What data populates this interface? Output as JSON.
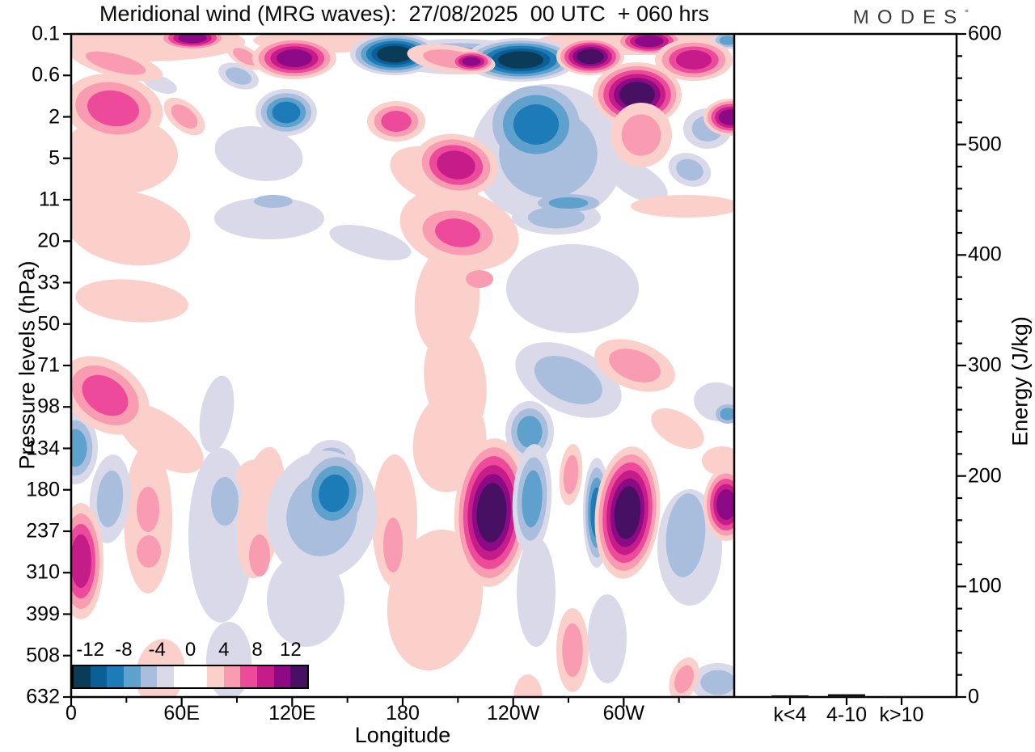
{
  "title": "Meridional wind (MRG waves):  27/08/2025  00 UTC  + 060 hrs",
  "logo": {
    "text": "MODES",
    "mark": "°"
  },
  "axes": {
    "x": {
      "label": "Longitude",
      "ticks": [
        "0",
        "60E",
        "120E",
        "180",
        "120W",
        "60W"
      ]
    },
    "y": {
      "label": "Pressure levels (hPa)",
      "ticks": [
        "0.1",
        "0.6",
        "2",
        "5",
        "11",
        "20",
        "33",
        "50",
        "71",
        "98",
        "134",
        "180",
        "237",
        "310",
        "399",
        "508",
        "632"
      ]
    },
    "energy": {
      "label": "Energy (J/kg)",
      "ticks": [
        "0",
        "100",
        "200",
        "300",
        "400",
        "500",
        "600"
      ],
      "min": 0,
      "max": 600,
      "minor_step": 20
    }
  },
  "colorbar": {
    "labels": [
      "-12",
      "-8",
      "-4",
      "0",
      "4",
      "8",
      "12"
    ],
    "segment_colors": [
      "#0a3c58",
      "#0c5f96",
      "#1d7cb8",
      "#5fa1cd",
      "#a9bedd",
      "#d9d9ea",
      "#ffffff",
      "#ffffff",
      "#fbd0cb",
      "#f99cb2",
      "#ee4a9b",
      "#c61c8a",
      "#8c0a86",
      "#471062"
    ]
  },
  "panel": {
    "bars": [
      {
        "label": "k<4",
        "value": 1.5
      },
      {
        "label": "4-10",
        "value": 2.5
      },
      {
        "label": "k>10",
        "value": 0.8
      }
    ],
    "bar_color": "#101010"
  },
  "chart_data": {
    "type": "filled_contour_with_bar_panel",
    "variable": "Meridional wind (MRG waves)",
    "valid": "27/08/2025 00 UTC + 060 hrs",
    "x_axis": {
      "label": "Longitude",
      "range_deg": [
        0,
        360
      ],
      "tick_labels": [
        "0",
        "60E",
        "120E",
        "180",
        "120W",
        "60W"
      ],
      "minor_tick_deg": 30
    },
    "y_axis": {
      "label": "Pressure levels (hPa)",
      "levels": [
        "0.1",
        "0.6",
        "2",
        "5",
        "11",
        "20",
        "33",
        "50",
        "71",
        "98",
        "134",
        "180",
        "237",
        "310",
        "399",
        "508",
        "632"
      ]
    },
    "contour_levels": [
      -12,
      -10,
      -8,
      -6,
      -4,
      -2,
      2,
      4,
      6,
      8,
      10,
      12
    ],
    "palette_negative": [
      "#d9d9ea",
      "#a9bedd",
      "#5fa1cd",
      "#1d7cb8",
      "#0c5f96",
      "#0a3c58"
    ],
    "palette_positive": [
      "#fbd0cb",
      "#f99cb2",
      "#ee4a9b",
      "#c61c8a",
      "#8c0a86",
      "#471062"
    ],
    "energy_panel": {
      "categories": [
        "k<4",
        "4-10",
        "k>10"
      ],
      "values_j_per_kg": [
        1.5,
        2.5,
        0.8
      ],
      "ylim": [
        0,
        600
      ],
      "ylabel": "Energy (J/kg)"
    },
    "notable_features": [
      "alternating strong positive (magenta/purple) and negative (dark navy) cells along the top 0.1-0.6 hPa band",
      "darkest negative chevron near 150E-180 at 0.1-0.3 hPa",
      "deep magenta cell with purple core near 120W-100W at 0.3-2 hPa",
      "broad negative (blue) region near 180 at 1-11 hPa",
      "long weak positive column near 170E-170W from 5 hPa down to 400 hPa",
      "strong vertical positive cells near 140W and 80W at 134-310 hPa",
      "broad negative cell near 110E-140E at 134-310 hPa",
      "positive cell with hot-pink core near 0-20E at 71-98 hPa"
    ],
    "blobs": [
      [
        110,
        62,
        22,
        10,
        20,
        -1,
        1,
        1
      ],
      [
        232,
        148,
        55,
        33,
        10,
        -1,
        1,
        1
      ],
      [
        245,
        228,
        68,
        26,
        0,
        -1,
        1,
        1
      ],
      [
        370,
        258,
        52,
        18,
        15,
        -1,
        1,
        1
      ],
      [
        620,
        315,
        82,
        55,
        0,
        -1,
        1,
        1
      ],
      [
        700,
        182,
        42,
        20,
        30,
        -1,
        1,
        1
      ],
      [
        180,
        470,
        20,
        48,
        10,
        -1,
        1,
        1
      ],
      [
        185,
        620,
        40,
        108,
        0,
        -1,
        1,
        1
      ],
      [
        290,
        700,
        48,
        58,
        0,
        -1,
        1,
        1
      ],
      [
        575,
        690,
        24,
        68,
        0,
        -1,
        1,
        1
      ],
      [
        195,
        775,
        28,
        48,
        0,
        -1,
        1,
        1
      ],
      [
        663,
        748,
        24,
        55,
        0,
        -1,
        1,
        1
      ],
      [
        765,
        635,
        40,
        72,
        0,
        -1,
        1,
        1
      ],
      [
        800,
        455,
        30,
        24,
        10,
        -1,
        1,
        1
      ],
      [
        90,
        10,
        125,
        24,
        0,
        1,
        1,
        1
      ],
      [
        320,
        8,
        95,
        15,
        0,
        1,
        1,
        1
      ],
      [
        700,
        10,
        125,
        16,
        0,
        1,
        1,
        1
      ],
      [
        60,
        150,
        72,
        48,
        0,
        1,
        1,
        1
      ],
      [
        25,
        190,
        48,
        42,
        0,
        1,
        1,
        1
      ],
      [
        450,
        175,
        58,
        32,
        20,
        1,
        1,
        1
      ],
      [
        70,
        240,
        78,
        45,
        10,
        1,
        1,
        1
      ],
      [
        75,
        330,
        70,
        26,
        5,
        1,
        1,
        1
      ],
      [
        480,
        242,
        75,
        48,
        15,
        1,
        1,
        1
      ],
      [
        465,
        330,
        40,
        68,
        5,
        1,
        1,
        1
      ],
      [
        475,
        430,
        38,
        68,
        -8,
        1,
        1,
        1
      ],
      [
        468,
        505,
        45,
        62,
        8,
        1,
        1,
        1
      ],
      [
        760,
        213,
        68,
        14,
        0,
        1,
        1,
        1
      ],
      [
        750,
        488,
        36,
        20,
        30,
        1,
        1,
        1
      ],
      [
        230,
        548,
        26,
        22,
        0,
        1,
        1,
        1
      ],
      [
        110,
        500,
        62,
        30,
        35,
        1,
        1,
        1
      ],
      [
        95,
        600,
        30,
        92,
        0,
        1,
        1,
        1
      ],
      [
        235,
        592,
        28,
        82,
        8,
        1,
        1,
        1
      ],
      [
        400,
        602,
        28,
        82,
        0,
        1,
        1,
        1
      ],
      [
        450,
        700,
        58,
        88,
        10,
        1,
        1,
        1
      ],
      [
        110,
        790,
        30,
        42,
        10,
        1,
        1,
        1
      ],
      [
        565,
        822,
        18,
        30,
        0,
        1,
        1,
        1
      ],
      [
        805,
        528,
        25,
        18,
        0,
        1,
        1,
        1
      ],
      [
        590,
        148,
        95,
        86,
        0,
        -1,
        1,
        2
      ],
      [
        575,
        112,
        54,
        48,
        0,
        -1,
        2,
        4
      ],
      [
        480,
        28,
        95,
        22,
        0,
        -1,
        1,
        3
      ],
      [
        400,
        25,
        55,
        26,
        0,
        -1,
        1,
        6
      ],
      [
        556,
        32,
        70,
        27,
        0,
        -1,
        1,
        6
      ],
      [
        207,
        52,
        26,
        15,
        20,
        -1,
        1,
        2
      ],
      [
        266,
        97,
        38,
        29,
        0,
        -1,
        1,
        4
      ],
      [
        787,
        117,
        30,
        25,
        0,
        -1,
        1,
        2
      ],
      [
        765,
        168,
        27,
        20,
        20,
        -1,
        1,
        2
      ],
      [
        600,
        227,
        55,
        21,
        0,
        -1,
        1,
        2
      ],
      [
        615,
        209,
        38,
        11,
        0,
        -1,
        2,
        3
      ],
      [
        250,
        207,
        24,
        8,
        0,
        -1,
        2,
        2
      ],
      [
        615,
        428,
        70,
        40,
        25,
        -1,
        1,
        2
      ],
      [
        567,
        492,
        30,
        38,
        0,
        -1,
        1,
        3
      ],
      [
        812,
        470,
        15,
        12,
        0,
        -1,
        2,
        3
      ],
      [
        322,
        528,
        30,
        26,
        0,
        -1,
        1,
        2
      ],
      [
        48,
        575,
        25,
        55,
        5,
        -1,
        1,
        2
      ],
      [
        190,
        578,
        17,
        30,
        0,
        -1,
        2,
        2
      ],
      [
        310,
        595,
        68,
        80,
        10,
        -1,
        1,
        2
      ],
      [
        325,
        568,
        36,
        45,
        10,
        -1,
        2,
        4
      ],
      [
        760,
        620,
        24,
        52,
        5,
        -1,
        2,
        2
      ],
      [
        5,
        512,
        28,
        45,
        0,
        -1,
        1,
        3
      ],
      [
        800,
        802,
        34,
        24,
        0,
        -1,
        1,
        2
      ],
      [
        812,
        8,
        20,
        11,
        0,
        -1,
        1,
        3
      ],
      [
        150,
        5,
        42,
        15,
        0,
        1,
        1,
        5
      ],
      [
        55,
        36,
        60,
        17,
        15,
        1,
        1,
        2
      ],
      [
        215,
        28,
        26,
        12,
        30,
        1,
        1,
        2
      ],
      [
        276,
        30,
        52,
        26,
        0,
        1,
        1,
        5
      ],
      [
        470,
        31,
        55,
        17,
        8,
        1,
        1,
        2
      ],
      [
        495,
        34,
        25,
        12,
        0,
        1,
        2,
        5
      ],
      [
        642,
        28,
        42,
        23,
        0,
        1,
        1,
        6
      ],
      [
        715,
        9,
        42,
        17,
        0,
        1,
        1,
        5
      ],
      [
        770,
        32,
        48,
        26,
        0,
        1,
        1,
        4
      ],
      [
        52,
        92,
        62,
        42,
        10,
        1,
        1,
        3
      ],
      [
        140,
        102,
        30,
        17,
        40,
        1,
        1,
        2
      ],
      [
        402,
        108,
        36,
        25,
        0,
        1,
        1,
        3
      ],
      [
        476,
        162,
        52,
        38,
        10,
        1,
        1,
        4
      ],
      [
        700,
        75,
        55,
        40,
        0,
        1,
        1,
        6
      ],
      [
        705,
        125,
        38,
        40,
        0,
        1,
        1,
        2
      ],
      [
        815,
        103,
        33,
        23,
        0,
        1,
        1,
        5
      ],
      [
        478,
        246,
        44,
        27,
        10,
        1,
        2,
        3
      ],
      [
        505,
        303,
        17,
        11,
        0,
        1,
        2,
        2
      ],
      [
        697,
        410,
        52,
        29,
        20,
        1,
        1,
        2
      ],
      [
        42,
        447,
        60,
        42,
        35,
        1,
        1,
        3
      ],
      [
        12,
        652,
        28,
        72,
        0,
        1,
        1,
        4
      ],
      [
        95,
        588,
        14,
        28,
        0,
        1,
        2,
        2
      ],
      [
        96,
        640,
        15,
        20,
        0,
        1,
        2,
        2
      ],
      [
        233,
        645,
        13,
        26,
        0,
        1,
        2,
        2
      ],
      [
        398,
        632,
        12,
        34,
        0,
        1,
        2,
        2
      ],
      [
        520,
        592,
        46,
        92,
        3,
        1,
        1,
        6
      ],
      [
        570,
        575,
        24,
        68,
        3,
        -1,
        1,
        3
      ],
      [
        618,
        545,
        14,
        38,
        5,
        1,
        1,
        2
      ],
      [
        650,
        592,
        17,
        68,
        0,
        -1,
        1,
        4
      ],
      [
        688,
        592,
        40,
        82,
        5,
        1,
        1,
        6
      ],
      [
        810,
        582,
        28,
        45,
        0,
        1,
        1,
        5
      ],
      [
        758,
        798,
        17,
        28,
        20,
        1,
        1,
        2
      ],
      [
        620,
        762,
        20,
        52,
        0,
        1,
        1,
        2
      ]
    ]
  }
}
